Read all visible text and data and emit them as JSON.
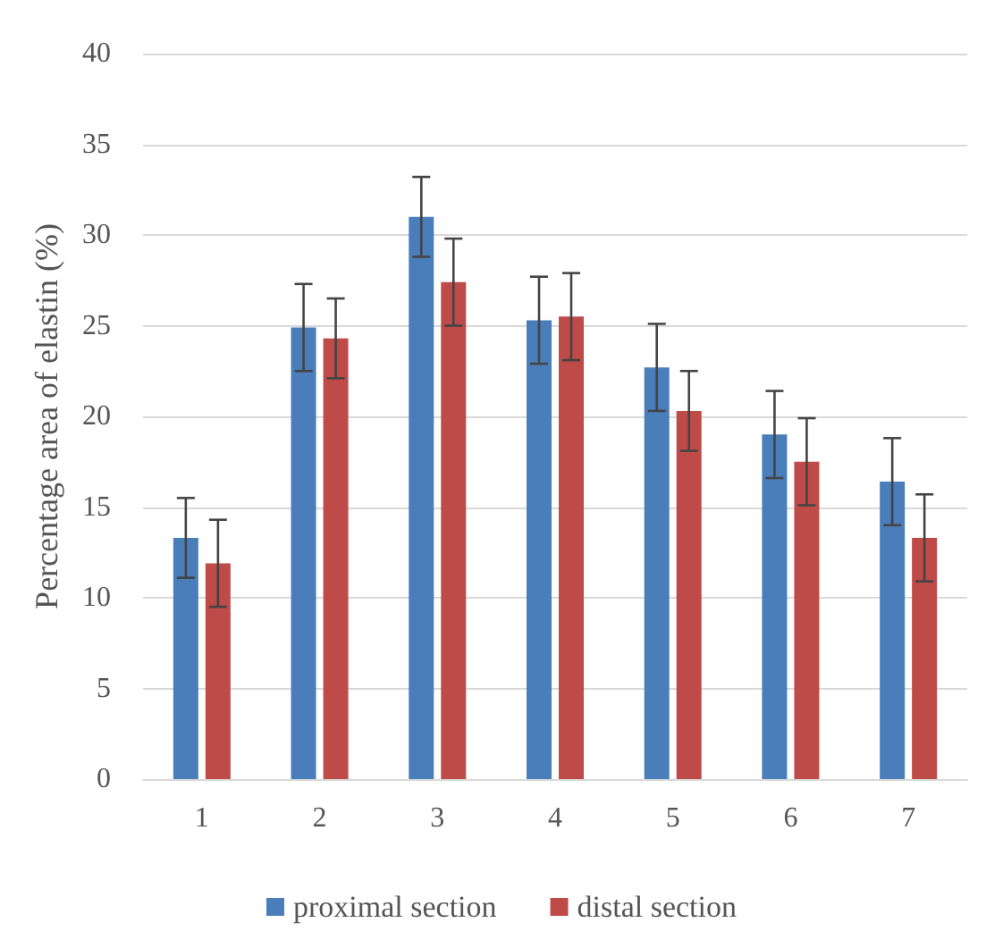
{
  "chart_data": {
    "type": "bar",
    "ylabel": "Percentage area of elastin (%)",
    "categories": [
      "1",
      "2",
      "3",
      "4",
      "5",
      "6",
      "7"
    ],
    "series": [
      {
        "name": "proximal section",
        "color": "#4a7ebb",
        "values": [
          13.3,
          24.9,
          31.0,
          25.3,
          22.7,
          19.0,
          16.4
        ],
        "errors": [
          2.2,
          2.4,
          2.2,
          2.4,
          2.4,
          2.4,
          2.4
        ]
      },
      {
        "name": "distal section",
        "color": "#be4b48",
        "values": [
          11.9,
          24.3,
          27.4,
          25.5,
          20.3,
          17.5,
          13.3
        ],
        "errors": [
          2.4,
          2.2,
          2.4,
          2.4,
          2.2,
          2.4,
          2.4
        ]
      }
    ],
    "ylim": [
      0,
      40
    ],
    "yticks": [
      0,
      5,
      10,
      15,
      20,
      25,
      30,
      35,
      40
    ],
    "grid": "y",
    "legend": "bottom"
  }
}
